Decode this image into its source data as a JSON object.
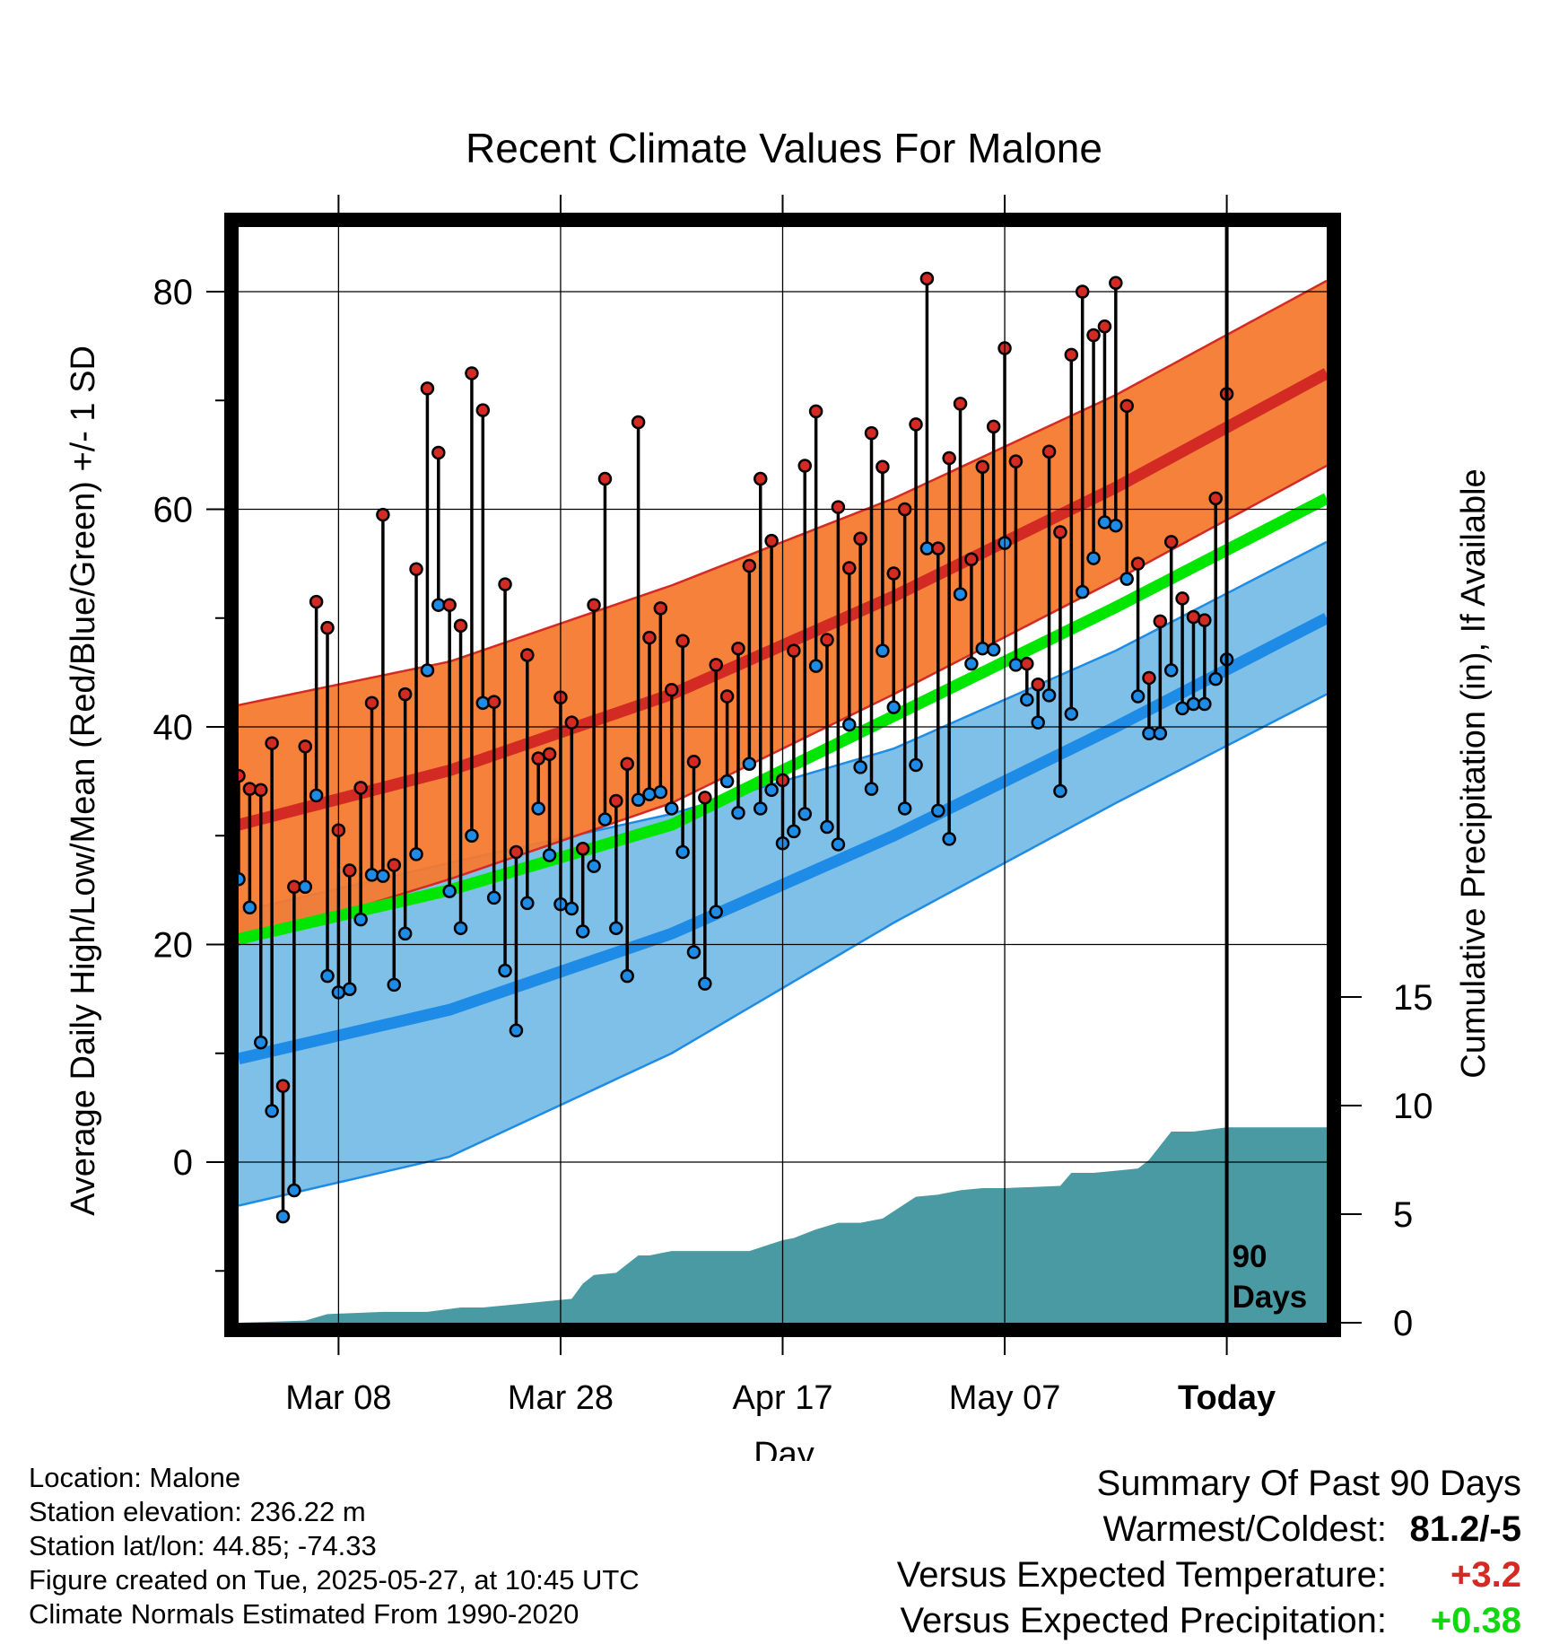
{
  "chart_data": {
    "type": "line",
    "title": "Recent Climate Values For Malone",
    "xlabel": "Day",
    "ylabel": "Average Daily High/Low/Mean (Red/Blue/Green) +/- 1 SD",
    "y2label": "Cumulative Precipitation (in), If Available",
    "ylim": [
      -14,
      86
    ],
    "y2lim": [
      0,
      24
    ],
    "yticks": [
      0,
      20,
      40,
      60,
      80
    ],
    "y2ticks": [
      0,
      5,
      10,
      15
    ],
    "xlim": [
      -89,
      9
    ],
    "xtick_labels": [
      "Mar 08",
      "Mar 28",
      "Apr 17",
      "May 07",
      "Today"
    ],
    "today_marker_label": [
      "90",
      "Days"
    ],
    "colors": {
      "high_band": "#f47a30",
      "high_mean": "#d42a24",
      "low_band": "#7fc0e8",
      "low_mean": "#1e8ce6",
      "mean_line": "#00e600",
      "precip": "#4a9aa4",
      "high_dot": "#d42a24",
      "low_dot": "#1e8ce6"
    },
    "normals": {
      "x": [
        -89,
        -70,
        -50,
        -30,
        -10,
        9
      ],
      "high_mean": [
        31,
        36,
        43,
        52,
        62,
        72.5
      ],
      "high_sd": [
        11,
        10,
        10,
        9,
        8.5,
        8.5
      ],
      "low_mean": [
        9.5,
        14,
        21,
        30,
        40,
        50
      ],
      "low_sd": [
        13.5,
        13.5,
        11,
        8,
        7,
        7
      ],
      "mean": [
        20.5,
        25,
        31,
        41,
        51,
        61
      ]
    },
    "observed": {
      "day": [
        -89,
        -88,
        -87,
        -86,
        -85,
        -84,
        -83,
        -82,
        -81,
        -80,
        -79,
        -78,
        -77,
        -76,
        -75,
        -74,
        -73,
        -72,
        -71,
        -70,
        -69,
        -68,
        -67,
        -66,
        -65,
        -64,
        -63,
        -62,
        -61,
        -60,
        -59,
        -58,
        -57,
        -56,
        -55,
        -54,
        -53,
        -52,
        -51,
        -50,
        -49,
        -48,
        -47,
        -46,
        -45,
        -44,
        -43,
        -42,
        -41,
        -40,
        -39,
        -38,
        -37,
        -36,
        -35,
        -34,
        -33,
        -32,
        -31,
        -30,
        -29,
        -28,
        -27,
        -26,
        -25,
        -24,
        -23,
        -22,
        -21,
        -20,
        -19,
        -18,
        -17,
        -16,
        -15,
        -14,
        -13,
        -12,
        -11,
        -10,
        -9,
        -8,
        -7,
        -6,
        -5,
        -4,
        -3,
        -2,
        -1,
        0
      ],
      "high": [
        35.5,
        34.3,
        34.2,
        38.5,
        7.0,
        25.3,
        38.2,
        51.5,
        49.1,
        30.5,
        26.8,
        34.4,
        42.2,
        59.5,
        27.3,
        43.0,
        54.5,
        71.1,
        65.2,
        51.2,
        49.3,
        72.5,
        69.1,
        42.3,
        53.1,
        28.5,
        46.6,
        37.1,
        37.5,
        42.7,
        40.4,
        28.8,
        51.2,
        62.8,
        33.2,
        36.6,
        68.0,
        48.2,
        50.9,
        43.4,
        47.9,
        36.8,
        33.5,
        45.7,
        42.8,
        47.2,
        54.8,
        62.8,
        57.1,
        35.1,
        47.0,
        64.0,
        69.0,
        48.0,
        60.2,
        54.6,
        57.3,
        67.0,
        63.9,
        54.1,
        60.0,
        67.8,
        81.2,
        56.4,
        64.7,
        69.7,
        55.4,
        63.9,
        67.6,
        74.8,
        64.4,
        45.8,
        43.9,
        65.3,
        57.9,
        74.2,
        80.0,
        76.0,
        76.8,
        80.8,
        69.5,
        55.0,
        44.5,
        49.7,
        57.0,
        51.8,
        50.1,
        49.8,
        61.0,
        70.6
      ],
      "low": [
        26.0,
        23.4,
        11.0,
        4.7,
        -5.0,
        -2.6,
        25.3,
        33.7,
        17.1,
        15.6,
        15.9,
        22.3,
        26.4,
        26.3,
        16.3,
        21.0,
        28.3,
        45.2,
        51.2,
        24.9,
        21.5,
        30.0,
        42.2,
        24.3,
        17.6,
        12.1,
        23.8,
        32.5,
        28.2,
        23.7,
        23.3,
        21.2,
        27.2,
        31.5,
        21.5,
        17.1,
        33.3,
        33.8,
        34.0,
        32.5,
        28.5,
        19.3,
        16.4,
        23.0,
        35.0,
        32.1,
        36.6,
        32.5,
        34.2,
        29.3,
        30.4,
        32.0,
        45.6,
        30.8,
        29.2,
        40.2,
        36.3,
        34.3,
        47.0,
        41.8,
        32.5,
        36.5,
        56.4,
        32.3,
        29.7,
        52.2,
        45.8,
        47.2,
        47.1,
        56.9,
        45.7,
        42.5,
        40.4,
        42.9,
        34.1,
        41.2,
        52.4,
        55.5,
        58.8,
        58.5,
        53.6,
        42.8,
        39.4,
        39.4,
        45.2,
        41.7,
        42.1,
        42.1,
        44.4,
        46.2
      ]
    },
    "precip_cumulative": {
      "x": [
        -89,
        -83,
        -81,
        -76,
        -72,
        -69,
        -67,
        -65,
        -63,
        -61,
        -59,
        -58,
        -57,
        -55,
        -53,
        -52,
        -51,
        -50,
        -47,
        -43,
        -40,
        -39,
        -37,
        -35,
        -34,
        -33,
        -31,
        -28,
        -26,
        -24,
        -22,
        -20,
        -15,
        -14,
        -13,
        -12,
        -10,
        -8,
        -7,
        -5,
        -4,
        -3,
        0,
        9
      ],
      "y": [
        0,
        0.1,
        0.4,
        0.5,
        0.5,
        0.7,
        0.7,
        0.8,
        0.9,
        1.0,
        1.1,
        1.8,
        2.2,
        2.3,
        3.1,
        3.1,
        3.2,
        3.3,
        3.3,
        3.3,
        3.8,
        3.9,
        4.3,
        4.6,
        4.6,
        4.6,
        4.8,
        5.8,
        5.9,
        6.1,
        6.2,
        6.2,
        6.3,
        6.9,
        6.9,
        6.9,
        7.0,
        7.1,
        7.5,
        8.8,
        8.8,
        8.8,
        9.0,
        9.0
      ]
    }
  },
  "footer": {
    "location": "Location: Malone",
    "elevation": "Station elevation: 236.22 m",
    "latlon": "Station lat/lon: 44.85; -74.33",
    "created": "Figure created on Tue, 2025-05-27, at 10:45 UTC",
    "normals": "Climate Normals Estimated From 1990-2020"
  },
  "summary": {
    "title": "Summary Of Past 90 Days",
    "warmest_coldest_label": "Warmest/Coldest:",
    "warmest_coldest_value": "81.2/-5",
    "temp_label": "Versus Expected Temperature:",
    "temp_value": "+3.2",
    "temp_color": "#d42a24",
    "precip_label": "Versus Expected Precipitation:",
    "precip_value": "+0.38",
    "precip_color": "#12d612"
  }
}
